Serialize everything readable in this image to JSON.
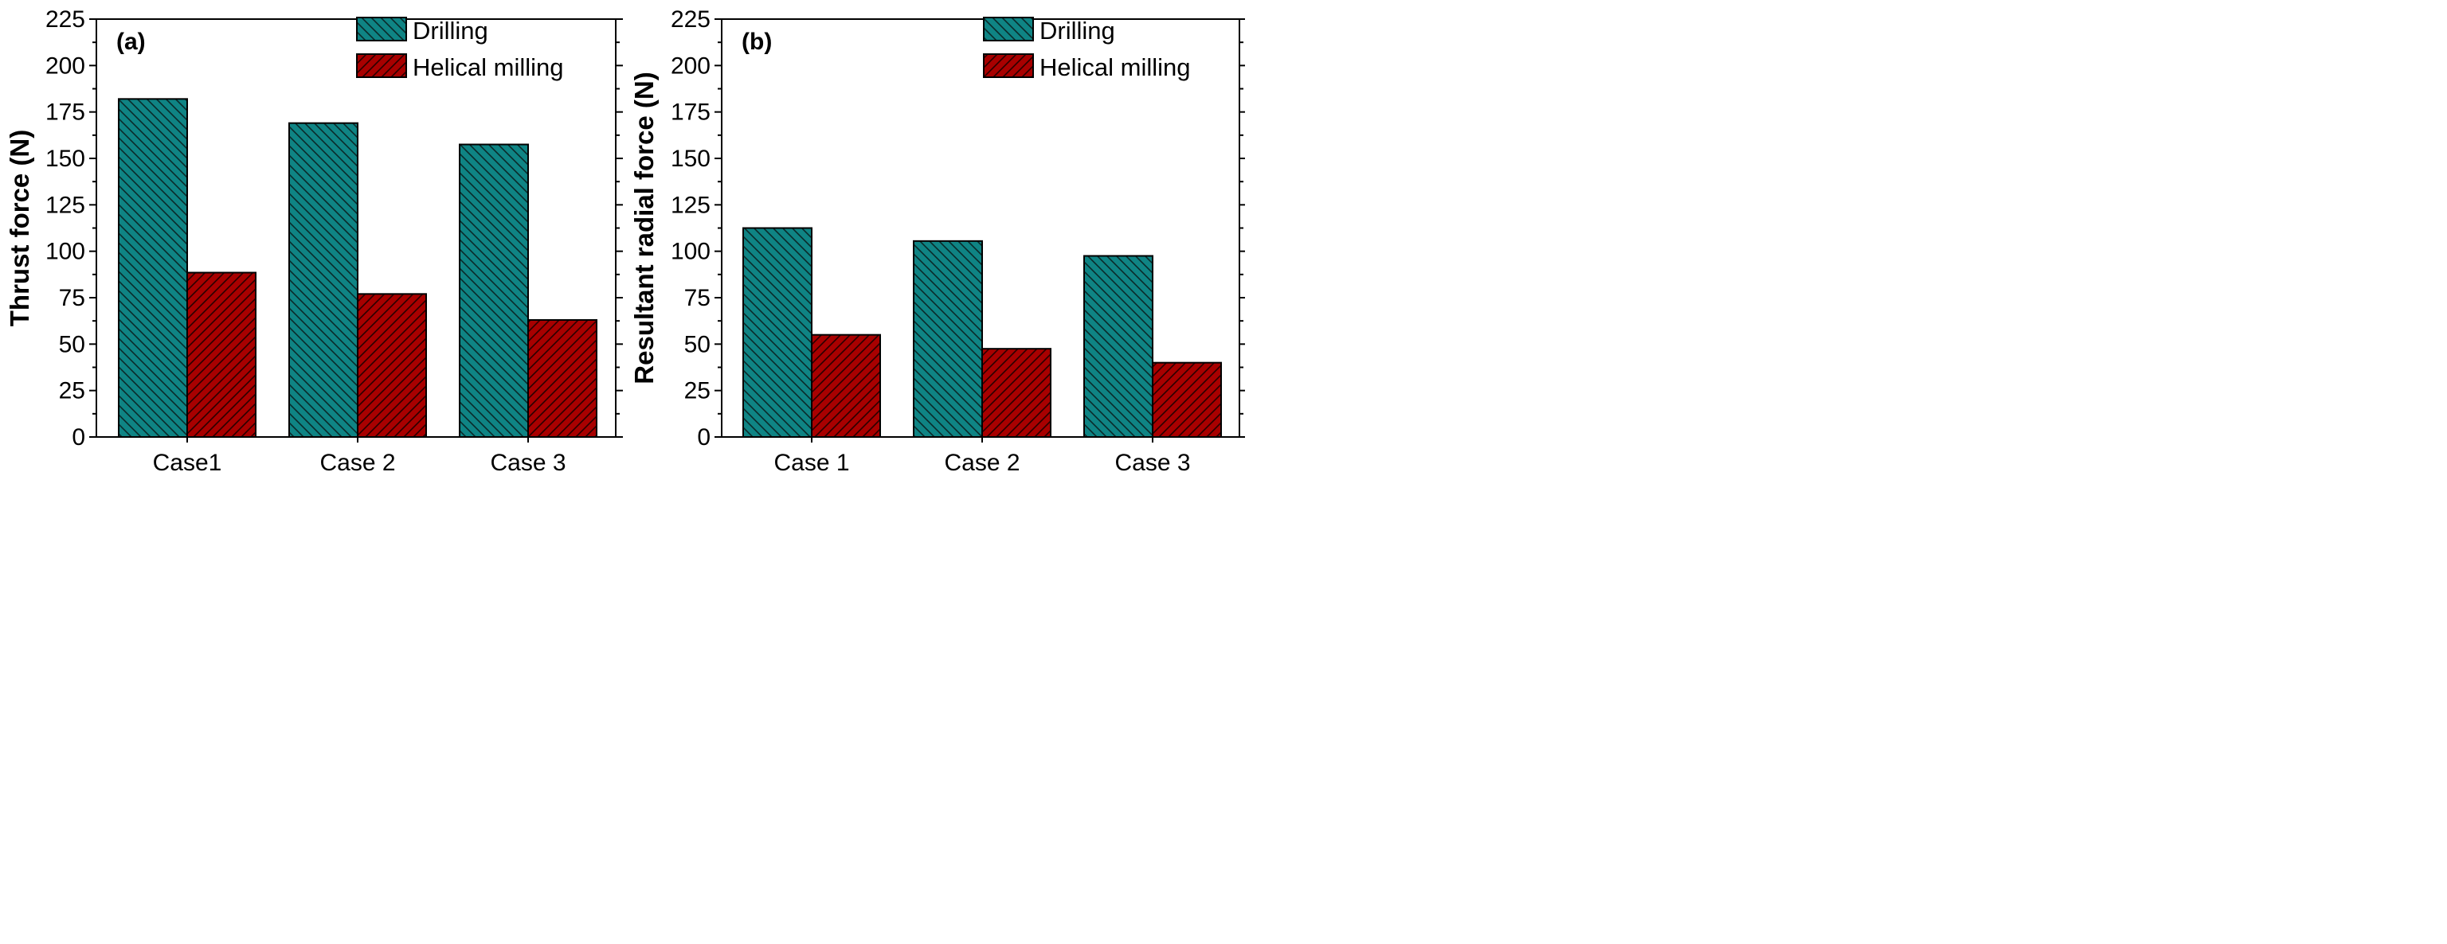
{
  "chart_data": [
    {
      "type": "bar",
      "panel_label": "(a)",
      "categories": [
        "Case1",
        "Case 2",
        "Case 3"
      ],
      "series": [
        {
          "name": "Drilling",
          "values": [
            182,
            169,
            157.5
          ],
          "color": "#0f8484",
          "hatch": "back-diagonal"
        },
        {
          "name": "Helical milling",
          "values": [
            88.5,
            77,
            63
          ],
          "color": "#a80000",
          "hatch": "forward-diagonal"
        }
      ],
      "title": "",
      "xlabel": "",
      "ylabel": "Thrust force (N)",
      "ylim": [
        0,
        225
      ],
      "yticks": [
        0,
        25,
        50,
        75,
        100,
        125,
        150,
        175,
        200,
        225
      ],
      "legend_position": "top-right",
      "grid": false
    },
    {
      "type": "bar",
      "panel_label": "(b)",
      "categories": [
        "Case 1",
        "Case 2",
        "Case 3"
      ],
      "series": [
        {
          "name": "Drilling",
          "values": [
            112.5,
            105.5,
            97.5
          ],
          "color": "#0f8484",
          "hatch": "back-diagonal"
        },
        {
          "name": "Helical milling",
          "values": [
            55,
            47.5,
            40
          ],
          "color": "#a80000",
          "hatch": "forward-diagonal"
        }
      ],
      "title": "",
      "xlabel": "",
      "ylabel": "Resultant radial force (N)",
      "ylim": [
        0,
        225
      ],
      "yticks": [
        0,
        25,
        50,
        75,
        100,
        125,
        150,
        175,
        200,
        225
      ],
      "legend_position": "top-right",
      "grid": false
    }
  ]
}
